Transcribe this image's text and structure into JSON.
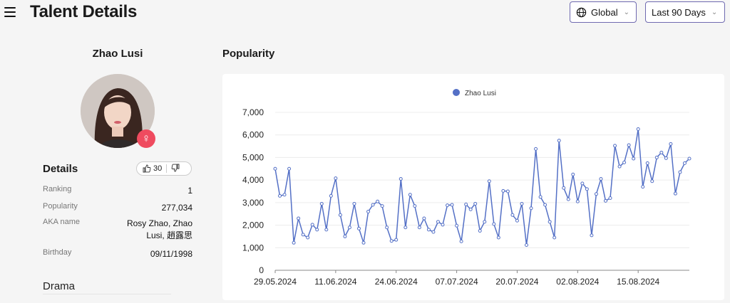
{
  "header": {
    "title": "Talent Details",
    "region": "Global",
    "period": "Last 90 Days"
  },
  "profile": {
    "name": "Zhao Lusi",
    "gender_symbol": "♀",
    "details_title": "Details",
    "likes": "30",
    "rows": [
      {
        "label": "Ranking",
        "value": "1"
      },
      {
        "label": "Popularity",
        "value": "277,034"
      },
      {
        "label": "AKA name",
        "value": "Rosy Zhao, Zhao Lusi, 趙露思"
      },
      {
        "label": "Birthday",
        "value": "09/11/1998"
      }
    ],
    "aka_line1": "Rosy Zhao, Zhao",
    "aka_line2": "Lusi, 趙露思",
    "drama_title": "Drama"
  },
  "popularity_title": "Popularity",
  "chart_data": {
    "type": "line",
    "series": [
      {
        "name": "Zhao Lusi",
        "color": "#5470c6"
      }
    ],
    "yticks": [
      "0",
      "1,000",
      "2,000",
      "3,000",
      "4,000",
      "5,000",
      "6,000",
      "7,000"
    ],
    "ylim": [
      0,
      7000
    ],
    "xticks": [
      "29.05.2024",
      "11.06.2024",
      "24.06.2024",
      "07.07.2024",
      "20.07.2024",
      "02.08.2024",
      "15.08.2024"
    ],
    "values": [
      4500,
      3300,
      3350,
      4500,
      1220,
      2300,
      1580,
      1450,
      2020,
      1800,
      2950,
      1800,
      3300,
      4080,
      2450,
      1500,
      1900,
      2950,
      1850,
      1220,
      2600,
      2900,
      3050,
      2850,
      1900,
      1300,
      1350,
      4050,
      1900,
      3350,
      2850,
      1900,
      2300,
      1800,
      1700,
      2150,
      2020,
      2880,
      2900,
      1980,
      1280,
      2920,
      2700,
      2950,
      1750,
      2150,
      3950,
      2050,
      1450,
      3520,
      3500,
      2450,
      2200,
      2950,
      1120,
      2750,
      5380,
      3250,
      2900,
      2150,
      1450,
      5750,
      3650,
      3150,
      4250,
      3050,
      3850,
      3600,
      1550,
      3380,
      4050,
      3080,
      3200,
      5520,
      4600,
      4780,
      5550,
      4950,
      6260,
      3700,
      4750,
      3950,
      5000,
      5220,
      4970,
      5600,
      3400,
      4350,
      4750,
      4950
    ]
  }
}
